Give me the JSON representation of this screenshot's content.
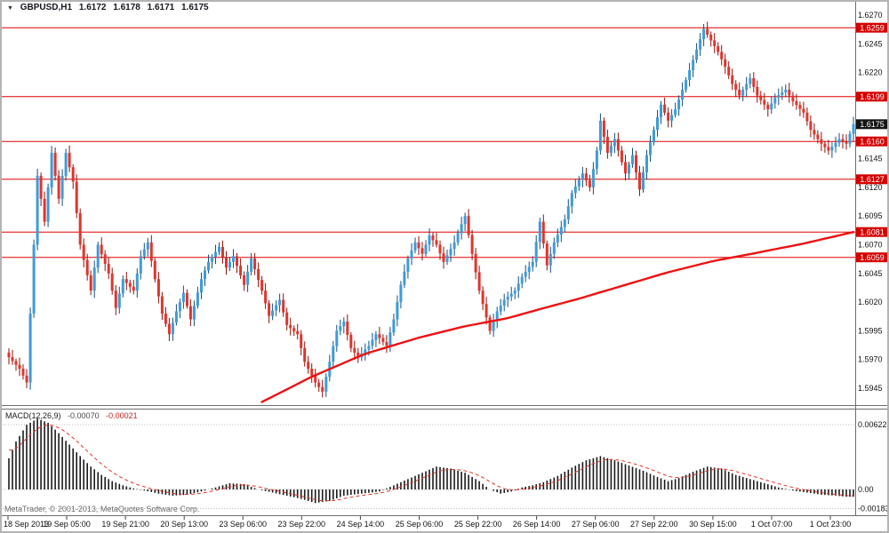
{
  "header": {
    "symbol_timeframe": "GBPUSD,H1",
    "open": "1.6172",
    "high": "1.6178",
    "low": "1.6171",
    "close": "1.6175",
    "arrow_icon": "▼"
  },
  "footer": {
    "copyright": "MetaTrader, © 2001-2013, MetaQuotes Software Corp."
  },
  "colors": {
    "bull": "#3f9bd8",
    "bull_border": "#14517e",
    "bear": "#e0352b",
    "bear_border": "#8f120c",
    "level_line": "#e00000",
    "level_badge": "#d40000",
    "current_badge": "#141414",
    "ma_line": "#ee1111",
    "macd_bar": "#1a1a1a",
    "macd_signal": "#e0352b",
    "axis_text": "#111111",
    "grid_dotted": "#bbbbbb",
    "separator": "#6e6e6e"
  },
  "chart_data": {
    "type": "candlestick",
    "symbol": "GBPUSD",
    "timeframe": "H1",
    "quote": {
      "open": 1.6172,
      "high": 1.6178,
      "low": 1.6171,
      "close": 1.6175
    },
    "bars": 238,
    "price_axis": {
      "top": 1.627,
      "bottom": 1.5945,
      "step": 0.0025,
      "tick_labels": [
        "1.6270",
        "1.6245",
        "1.6220",
        "1.6145",
        "1.6120",
        "1.6095",
        "1.6070",
        "1.6045",
        "1.6020",
        "1.5995",
        "1.5970",
        "1.5945"
      ]
    },
    "horizontal_levels": [
      1.6259,
      1.6199,
      1.616,
      1.6127,
      1.6081,
      1.6059
    ],
    "current_price": 1.6175,
    "current_price_label": "1.6175",
    "time_axis": {
      "labels": [
        "18 Sep 2013",
        "19 Sep 05:00",
        "19 Sep 21:00",
        "20 Sep 13:00",
        "23 Sep 06:00",
        "23 Sep 22:00",
        "24 Sep 14:00",
        "25 Sep 06:00",
        "25 Sep 22:00",
        "26 Sep 14:00",
        "27 Sep 06:00",
        "27 Sep 22:00",
        "30 Sep 15:00",
        "1 Oct 07:00",
        "1 Oct 23:00"
      ]
    },
    "close_waypoints": [
      [
        0,
        1.5972
      ],
      [
        3,
        1.5962
      ],
      [
        5,
        1.595
      ],
      [
        7,
        1.607
      ],
      [
        8,
        1.613
      ],
      [
        10,
        1.609
      ],
      [
        12,
        1.615
      ],
      [
        14,
        1.611
      ],
      [
        16,
        1.615
      ],
      [
        18,
        1.6125
      ],
      [
        20,
        1.607
      ],
      [
        23,
        1.603
      ],
      [
        25,
        1.607
      ],
      [
        28,
        1.6045
      ],
      [
        30,
        1.6015
      ],
      [
        32,
        1.604
      ],
      [
        35,
        1.603
      ],
      [
        37,
        1.606
      ],
      [
        39,
        1.6072
      ],
      [
        41,
        1.604
      ],
      [
        43,
        1.601
      ],
      [
        45,
        1.5992
      ],
      [
        47,
        1.6012
      ],
      [
        49,
        1.6028
      ],
      [
        51,
        1.6005
      ],
      [
        54,
        1.604
      ],
      [
        56,
        1.6055
      ],
      [
        59,
        1.6068
      ],
      [
        61,
        1.605
      ],
      [
        63,
        1.606
      ],
      [
        66,
        1.6035
      ],
      [
        68,
        1.6058
      ],
      [
        71,
        1.603
      ],
      [
        73,
        1.6008
      ],
      [
        76,
        1.6022
      ],
      [
        78,
        1.6
      ],
      [
        81,
        1.5992
      ],
      [
        83,
        1.5968
      ],
      [
        86,
        1.595
      ],
      [
        88,
        1.5942
      ],
      [
        90,
        1.5968
      ],
      [
        92,
        1.5995
      ],
      [
        94,
        1.6003
      ],
      [
        96,
        1.598
      ],
      [
        98,
        1.5972
      ],
      [
        101,
        1.5982
      ],
      [
        103,
        1.5992
      ],
      [
        106,
        1.5982
      ],
      [
        108,
        1.6005
      ],
      [
        110,
        1.6035
      ],
      [
        112,
        1.6058
      ],
      [
        114,
        1.6072
      ],
      [
        116,
        1.6062
      ],
      [
        118,
        1.6078
      ],
      [
        120,
        1.607
      ],
      [
        122,
        1.6055
      ],
      [
        125,
        1.6072
      ],
      [
        127,
        1.6088
      ],
      [
        128,
        1.6095
      ],
      [
        130,
        1.6062
      ],
      [
        132,
        1.603
      ],
      [
        135,
        1.5995
      ],
      [
        137,
        1.6012
      ],
      [
        139,
        1.6022
      ],
      [
        142,
        1.603
      ],
      [
        144,
        1.6042
      ],
      [
        147,
        1.6055
      ],
      [
        149,
        1.609
      ],
      [
        151,
        1.6052
      ],
      [
        153,
        1.6072
      ],
      [
        156,
        1.6092
      ],
      [
        158,
        1.6115
      ],
      [
        161,
        1.6132
      ],
      [
        163,
        1.612
      ],
      [
        165,
        1.6152
      ],
      [
        166,
        1.6178
      ],
      [
        168,
        1.615
      ],
      [
        170,
        1.6162
      ],
      [
        173,
        1.6132
      ],
      [
        175,
        1.6148
      ],
      [
        177,
        1.6118
      ],
      [
        179,
        1.6148
      ],
      [
        181,
        1.617
      ],
      [
        183,
        1.6192
      ],
      [
        185,
        1.6178
      ],
      [
        187,
        1.6188
      ],
      [
        189,
        1.6205
      ],
      [
        191,
        1.6222
      ],
      [
        193,
        1.624
      ],
      [
        195,
        1.6258
      ],
      [
        197,
        1.6248
      ],
      [
        199,
        1.6238
      ],
      [
        201,
        1.6225
      ],
      [
        203,
        1.621
      ],
      [
        205,
        1.62
      ],
      [
        208,
        1.6215
      ],
      [
        210,
        1.62
      ],
      [
        213,
        1.6188
      ],
      [
        215,
        1.6198
      ],
      [
        218,
        1.6205
      ],
      [
        220,
        1.6195
      ],
      [
        223,
        1.6185
      ],
      [
        225,
        1.617
      ],
      [
        228,
        1.6158
      ],
      [
        230,
        1.6152
      ],
      [
        233,
        1.6162
      ],
      [
        235,
        1.6158
      ],
      [
        237,
        1.6175
      ]
    ],
    "ma_waypoints": [
      [
        71,
        1.5933
      ],
      [
        85,
        1.5955
      ],
      [
        100,
        1.5975
      ],
      [
        115,
        1.5989
      ],
      [
        128,
        1.5999
      ],
      [
        140,
        1.6006
      ],
      [
        148,
        1.6013
      ],
      [
        160,
        1.6023
      ],
      [
        173,
        1.6035
      ],
      [
        185,
        1.6046
      ],
      [
        198,
        1.6056
      ],
      [
        210,
        1.6063
      ],
      [
        223,
        1.6071
      ],
      [
        237,
        1.6081
      ]
    ],
    "macd": {
      "label": "MACD(12,26,9)",
      "main_value": "-0.00070",
      "signal_value": "-0.00021",
      "axis_labels": [
        "0.00622",
        "0.00",
        "-0.00183"
      ],
      "main_waypoints": [
        [
          0,
          0.003
        ],
        [
          2,
          0.0046
        ],
        [
          5,
          0.0062
        ],
        [
          8,
          0.0068
        ],
        [
          11,
          0.0064
        ],
        [
          14,
          0.0054
        ],
        [
          17,
          0.0043
        ],
        [
          20,
          0.0032
        ],
        [
          23,
          0.0022
        ],
        [
          26,
          0.0014
        ],
        [
          29,
          0.0008
        ],
        [
          32,
          0.0004
        ],
        [
          35,
          0.0001
        ],
        [
          38,
          -0.0001
        ],
        [
          42,
          -0.0004
        ],
        [
          46,
          -0.0006
        ],
        [
          50,
          -0.0005
        ],
        [
          54,
          -0.0002
        ],
        [
          58,
          0.0002
        ],
        [
          62,
          0.0006
        ],
        [
          66,
          0.0005
        ],
        [
          70,
          0.0
        ],
        [
          74,
          -0.0003
        ],
        [
          78,
          -0.0006
        ],
        [
          82,
          -0.0009
        ],
        [
          86,
          -0.0013
        ],
        [
          90,
          -0.0011
        ],
        [
          94,
          -0.0006
        ],
        [
          99,
          -0.0004
        ],
        [
          104,
          -0.0002
        ],
        [
          108,
          0.0004
        ],
        [
          112,
          0.001
        ],
        [
          116,
          0.0016
        ],
        [
          120,
          0.0022
        ],
        [
          124,
          0.002
        ],
        [
          128,
          0.0016
        ],
        [
          132,
          0.0008
        ],
        [
          135,
          0.0
        ],
        [
          138,
          -0.0004
        ],
        [
          141,
          -0.0002
        ],
        [
          144,
          0.0002
        ],
        [
          147,
          0.0004
        ],
        [
          150,
          0.0007
        ],
        [
          154,
          0.0013
        ],
        [
          158,
          0.0021
        ],
        [
          162,
          0.0028
        ],
        [
          166,
          0.0032
        ],
        [
          170,
          0.0028
        ],
        [
          174,
          0.0023
        ],
        [
          178,
          0.0018
        ],
        [
          182,
          0.0012
        ],
        [
          185,
          0.0008
        ],
        [
          188,
          0.0011
        ],
        [
          192,
          0.0017
        ],
        [
          196,
          0.0022
        ],
        [
          200,
          0.002
        ],
        [
          204,
          0.0014
        ],
        [
          208,
          0.001
        ],
        [
          212,
          0.0006
        ],
        [
          216,
          0.0002
        ],
        [
          220,
          -0.0001
        ],
        [
          224,
          -0.0003
        ],
        [
          228,
          -0.0005
        ],
        [
          232,
          -0.0006
        ],
        [
          235,
          -0.0007
        ],
        [
          237,
          -0.0007
        ]
      ]
    }
  }
}
